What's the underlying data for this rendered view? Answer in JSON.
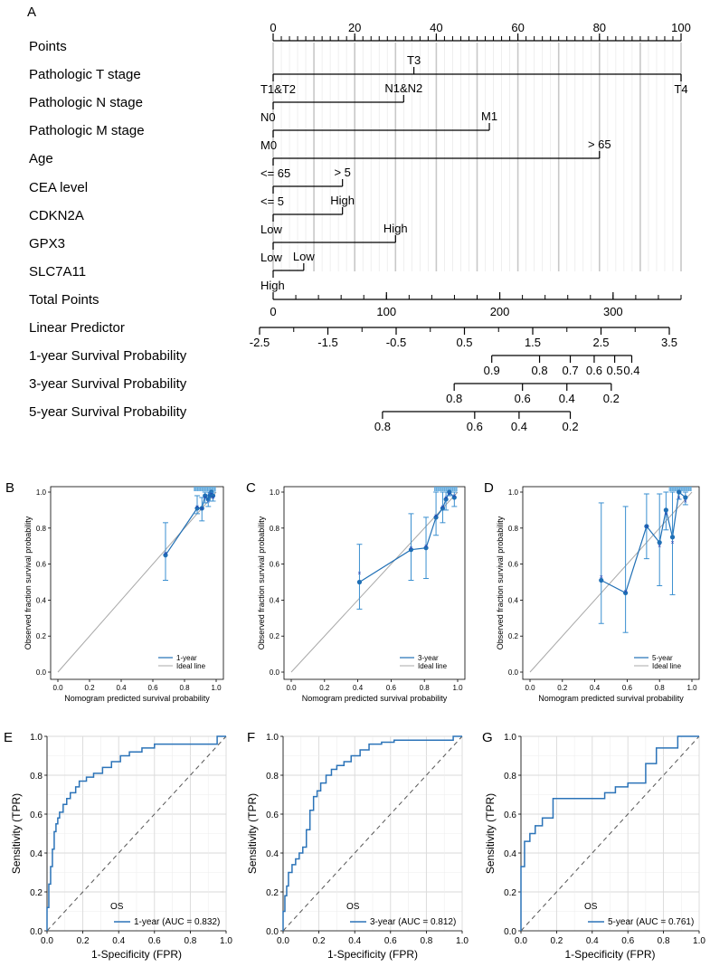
{
  "panel_labels": [
    "A",
    "B",
    "C",
    "D",
    "E",
    "F",
    "G"
  ],
  "chart_data": [
    {
      "type": "nomogram",
      "panel": "A",
      "rows": [
        {
          "label": "Points",
          "kind": "scale",
          "ticks": [
            {
              "v": 0,
              "t": "0"
            },
            {
              "v": 20,
              "t": "20"
            },
            {
              "v": 40,
              "t": "40"
            },
            {
              "v": 60,
              "t": "60"
            },
            {
              "v": 80,
              "t": "80"
            },
            {
              "v": 100,
              "t": "100"
            }
          ],
          "minor_step": 2
        },
        {
          "label": "Pathologic T stage",
          "kind": "var",
          "from": 0,
          "to": 100,
          "levels": [
            {
              "v": 0,
              "t": "T1&T2",
              "pos": "below"
            },
            {
              "v": 34.5,
              "t": "T3",
              "pos": "above"
            },
            {
              "v": 100,
              "t": "T4",
              "pos": "below"
            }
          ]
        },
        {
          "label": "Pathologic N stage",
          "kind": "var",
          "from": 0,
          "to": 32,
          "levels": [
            {
              "v": 0,
              "t": "N0",
              "pos": "below"
            },
            {
              "v": 32,
              "t": "N1&N2",
              "pos": "above"
            }
          ]
        },
        {
          "label": "Pathologic M stage",
          "kind": "var",
          "from": 0,
          "to": 53,
          "levels": [
            {
              "v": 0,
              "t": "M0",
              "pos": "below"
            },
            {
              "v": 53,
              "t": "M1",
              "pos": "above"
            }
          ]
        },
        {
          "label": "Age",
          "kind": "var",
          "from": 0,
          "to": 80,
          "levels": [
            {
              "v": 0,
              "t": "<= 65",
              "pos": "below"
            },
            {
              "v": 80,
              "t": "> 65",
              "pos": "above"
            }
          ]
        },
        {
          "label": "CEA level",
          "kind": "var",
          "from": 0,
          "to": 17,
          "levels": [
            {
              "v": 0,
              "t": "<= 5",
              "pos": "below"
            },
            {
              "v": 17,
              "t": "> 5",
              "pos": "above"
            }
          ]
        },
        {
          "label": "CDKN2A",
          "kind": "var",
          "from": 0,
          "to": 17,
          "levels": [
            {
              "v": 0,
              "t": "Low",
              "pos": "below"
            },
            {
              "v": 17,
              "t": "High",
              "pos": "above"
            }
          ]
        },
        {
          "label": "GPX3",
          "kind": "var",
          "from": 0,
          "to": 30,
          "levels": [
            {
              "v": 0,
              "t": "Low",
              "pos": "below"
            },
            {
              "v": 30,
              "t": "High",
              "pos": "above"
            }
          ]
        },
        {
          "label": "SLC7A11",
          "kind": "var",
          "from": 0,
          "to": 7.5,
          "levels": [
            {
              "v": 0,
              "t": "High",
              "pos": "below"
            },
            {
              "v": 7.5,
              "t": "Low",
              "pos": "above"
            }
          ]
        },
        {
          "label": "Total Points",
          "kind": "scale",
          "to_points": 100,
          "axis_max": 360,
          "ticks": [
            {
              "v": 0,
              "t": "0"
            },
            {
              "v": 100,
              "t": "100"
            },
            {
              "v": 200,
              "t": "200"
            },
            {
              "v": 300,
              "t": "300"
            }
          ],
          "minor_step": 20
        },
        {
          "label": "Linear Predictor",
          "kind": "lp",
          "ticks": [
            {
              "v": -2.5,
              "t": "-2.5"
            },
            {
              "v": -1.5,
              "t": "-1.5"
            },
            {
              "v": -0.5,
              "t": "-0.5"
            },
            {
              "v": 0.5,
              "t": "0.5"
            },
            {
              "v": 1.5,
              "t": "1.5"
            },
            {
              "v": 2.5,
              "t": "2.5"
            },
            {
              "v": 3.5,
              "t": "3.5"
            }
          ],
          "minor_step": 0.5
        },
        {
          "label": "1-year Survival Probability",
          "kind": "surv",
          "ticks": [
            {
              "lp": 0.9,
              "t": "0.9"
            },
            {
              "lp": 1.6,
              "t": "0.8"
            },
            {
              "lp": 2.05,
              "t": "0.7"
            },
            {
              "lp": 2.4,
              "t": "0.6"
            },
            {
              "lp": 2.7,
              "t": "0.5"
            },
            {
              "lp": 2.95,
              "t": "0.4"
            }
          ]
        },
        {
          "label": "3-year Survival Probability",
          "kind": "surv",
          "ticks": [
            {
              "lp": 0.35,
              "t": "0.8"
            },
            {
              "lp": 1.35,
              "t": "0.6"
            },
            {
              "lp": 2.0,
              "t": "0.4"
            },
            {
              "lp": 2.65,
              "t": "0.2"
            }
          ]
        },
        {
          "label": "5-year Survival Probability",
          "kind": "surv",
          "ticks": [
            {
              "lp": -0.7,
              "t": "0.8"
            },
            {
              "lp": 0.65,
              "t": "0.6"
            },
            {
              "lp": 1.3,
              "t": "0.4"
            },
            {
              "lp": 2.05,
              "t": "0.2"
            }
          ]
        }
      ]
    },
    {
      "type": "calibration",
      "panel": "B",
      "xlabel": "Nomogram predicted survival probability",
      "ylabel": "Observed fraction survival probability",
      "xlim": [
        0,
        1
      ],
      "ylim": [
        0,
        1
      ],
      "ticks": [
        "0.0",
        "0.2",
        "0.4",
        "0.6",
        "0.8",
        "1.0"
      ],
      "legend": [
        "1-year",
        "Ideal line"
      ],
      "points": [
        {
          "x": 0.68,
          "y": 0.65,
          "lo": 0.51,
          "hi": 0.83,
          "cross": 0.66
        },
        {
          "x": 0.88,
          "y": 0.91,
          "lo": 0.88,
          "hi": 0.98,
          "cross": 0.92
        },
        {
          "x": 0.91,
          "y": 0.91,
          "lo": 0.84,
          "hi": 0.97,
          "cross": 0.91
        },
        {
          "x": 0.93,
          "y": 0.98,
          "lo": 0.94,
          "hi": 1.0,
          "cross": 0.97
        },
        {
          "x": 0.95,
          "y": 0.96,
          "lo": 0.92,
          "hi": 1.0,
          "cross": 0.95
        },
        {
          "x": 0.96,
          "y": 0.98,
          "lo": 0.95,
          "hi": 1.0,
          "cross": 0.99
        },
        {
          "x": 0.97,
          "y": 1.0,
          "lo": 0.99,
          "hi": 1.0,
          "cross": 0.99
        },
        {
          "x": 0.98,
          "y": 0.98,
          "lo": 0.95,
          "hi": 1.0,
          "cross": 0.97
        }
      ]
    },
    {
      "type": "calibration",
      "panel": "C",
      "xlabel": "Nomogram predicted survival probability",
      "ylabel": "Observed fraction survival probability",
      "xlim": [
        0,
        1
      ],
      "ylim": [
        0,
        1
      ],
      "ticks": [
        "0.0",
        "0.2",
        "0.4",
        "0.6",
        "0.8",
        "1.0"
      ],
      "legend": [
        "3-year",
        "Ideal line"
      ],
      "points": [
        {
          "x": 0.41,
          "y": 0.5,
          "lo": 0.35,
          "hi": 0.71,
          "cross": 0.55
        },
        {
          "x": 0.72,
          "y": 0.68,
          "lo": 0.51,
          "hi": 0.88,
          "cross": 0.69
        },
        {
          "x": 0.81,
          "y": 0.69,
          "lo": 0.52,
          "hi": 0.86,
          "cross": 0.7
        },
        {
          "x": 0.87,
          "y": 0.86,
          "lo": 0.76,
          "hi": 1.0,
          "cross": 0.87
        },
        {
          "x": 0.91,
          "y": 0.91,
          "lo": 0.83,
          "hi": 1.0,
          "cross": 0.92
        },
        {
          "x": 0.93,
          "y": 0.96,
          "lo": 0.9,
          "hi": 1.0,
          "cross": 0.97
        },
        {
          "x": 0.95,
          "y": 1.0,
          "lo": 0.98,
          "hi": 1.0,
          "cross": 0.99
        },
        {
          "x": 0.98,
          "y": 0.97,
          "lo": 0.92,
          "hi": 1.0,
          "cross": 0.98
        }
      ]
    },
    {
      "type": "calibration",
      "panel": "D",
      "xlabel": "Nomogram predicted survival probability",
      "ylabel": "Observed fraction survival probability",
      "xlim": [
        0,
        1
      ],
      "ylim": [
        0,
        1
      ],
      "ticks": [
        "0.0",
        "0.2",
        "0.4",
        "0.6",
        "0.8",
        "1.0"
      ],
      "legend": [
        "5-year",
        "Ideal line"
      ],
      "points": [
        {
          "x": 0.44,
          "y": 0.51,
          "lo": 0.27,
          "hi": 0.94,
          "cross": 0.53
        },
        {
          "x": 0.59,
          "y": 0.44,
          "lo": 0.22,
          "hi": 0.92,
          "cross": 0.45
        },
        {
          "x": 0.72,
          "y": 0.81,
          "lo": 0.63,
          "hi": 0.99,
          "cross": 0.81
        },
        {
          "x": 0.8,
          "y": 0.72,
          "lo": 0.48,
          "hi": 0.99,
          "cross": 0.7
        },
        {
          "x": 0.84,
          "y": 0.9,
          "lo": 0.79,
          "hi": 1.0,
          "cross": 0.88
        },
        {
          "x": 0.88,
          "y": 0.75,
          "lo": 0.43,
          "hi": 1.0,
          "cross": 0.72
        },
        {
          "x": 0.92,
          "y": 1.0,
          "lo": 0.96,
          "hi": 1.0,
          "cross": 0.97
        },
        {
          "x": 0.96,
          "y": 0.97,
          "lo": 0.93,
          "hi": 1.0,
          "cross": 0.95
        }
      ]
    },
    {
      "type": "roc",
      "panel": "E",
      "xlabel": "1-Specificity (FPR)",
      "ylabel": "Sensitivity (TPR)",
      "ticks": [
        "0.0",
        "0.2",
        "0.4",
        "0.6",
        "0.8",
        "1.0"
      ],
      "legend_title": "OS",
      "legend_label": "1-year (AUC = 0.832)",
      "fpr": [
        0,
        0,
        0.01,
        0.01,
        0.02,
        0.02,
        0.03,
        0.03,
        0.04,
        0.04,
        0.05,
        0.05,
        0.06,
        0.06,
        0.07,
        0.07,
        0.09,
        0.09,
        0.11,
        0.11,
        0.13,
        0.13,
        0.16,
        0.16,
        0.18,
        0.18,
        0.22,
        0.22,
        0.26,
        0.26,
        0.31,
        0.31,
        0.36,
        0.36,
        0.41,
        0.41,
        0.46,
        0.46,
        0.53,
        0.53,
        0.6,
        0.6,
        0.95,
        0.95,
        1.0
      ],
      "tpr": [
        0,
        0.12,
        0.12,
        0.24,
        0.24,
        0.33,
        0.33,
        0.42,
        0.42,
        0.51,
        0.51,
        0.55,
        0.55,
        0.58,
        0.58,
        0.61,
        0.61,
        0.65,
        0.65,
        0.68,
        0.68,
        0.71,
        0.71,
        0.74,
        0.74,
        0.77,
        0.77,
        0.79,
        0.79,
        0.81,
        0.81,
        0.84,
        0.84,
        0.87,
        0.87,
        0.9,
        0.9,
        0.92,
        0.92,
        0.94,
        0.94,
        0.96,
        0.96,
        1.0,
        1.0
      ]
    },
    {
      "type": "roc",
      "panel": "F",
      "xlabel": "1-Specificity (FPR)",
      "ylabel": "Sensitivity (TPR)",
      "ticks": [
        "0.0",
        "0.2",
        "0.4",
        "0.6",
        "0.8",
        "1.0"
      ],
      "legend_title": "OS",
      "legend_label": "3-year (AUC = 0.812)",
      "fpr": [
        0,
        0,
        0.01,
        0.01,
        0.02,
        0.02,
        0.03,
        0.03,
        0.05,
        0.05,
        0.07,
        0.07,
        0.09,
        0.09,
        0.11,
        0.11,
        0.13,
        0.13,
        0.15,
        0.15,
        0.17,
        0.17,
        0.19,
        0.19,
        0.21,
        0.21,
        0.24,
        0.24,
        0.27,
        0.27,
        0.3,
        0.3,
        0.34,
        0.34,
        0.38,
        0.38,
        0.43,
        0.43,
        0.48,
        0.48,
        0.55,
        0.55,
        0.62,
        0.62,
        0.95,
        0.95,
        1.0
      ],
      "tpr": [
        0,
        0.1,
        0.1,
        0.18,
        0.18,
        0.23,
        0.23,
        0.3,
        0.3,
        0.34,
        0.34,
        0.37,
        0.37,
        0.4,
        0.4,
        0.43,
        0.43,
        0.52,
        0.52,
        0.62,
        0.62,
        0.69,
        0.69,
        0.72,
        0.72,
        0.76,
        0.76,
        0.8,
        0.8,
        0.83,
        0.83,
        0.85,
        0.85,
        0.87,
        0.87,
        0.9,
        0.9,
        0.93,
        0.93,
        0.96,
        0.96,
        0.97,
        0.97,
        0.98,
        0.98,
        1.0,
        1.0
      ]
    },
    {
      "type": "roc",
      "panel": "G",
      "xlabel": "1-Specificity (FPR)",
      "ylabel": "Sensitivity (TPR)",
      "ticks": [
        "0.0",
        "0.2",
        "0.4",
        "0.6",
        "0.8",
        "1.0"
      ],
      "legend_title": "OS",
      "legend_label": "5-year (AUC = 0.761)",
      "fpr": [
        0,
        0,
        0.02,
        0.02,
        0.05,
        0.05,
        0.08,
        0.08,
        0.12,
        0.12,
        0.18,
        0.18,
        0.47,
        0.47,
        0.53,
        0.53,
        0.6,
        0.6,
        0.7,
        0.7,
        0.76,
        0.76,
        0.88,
        0.88,
        1.0
      ],
      "tpr": [
        0,
        0.33,
        0.33,
        0.46,
        0.46,
        0.5,
        0.5,
        0.54,
        0.54,
        0.58,
        0.58,
        0.68,
        0.68,
        0.71,
        0.71,
        0.74,
        0.74,
        0.76,
        0.76,
        0.86,
        0.86,
        0.94,
        0.94,
        1.0,
        1.0
      ]
    }
  ]
}
